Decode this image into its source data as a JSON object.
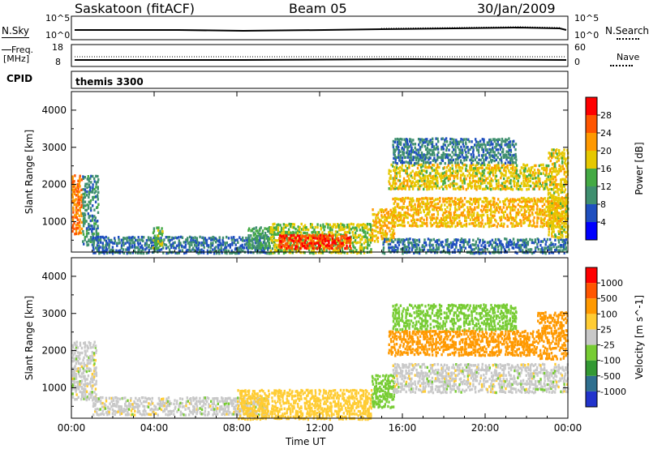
{
  "header": {
    "station": "Saskatoon (fitACF)",
    "beam": "Beam 05",
    "date": "30/Jan/2009"
  },
  "strip1": {
    "left_label": "N.Sky",
    "right_label": "N.Search",
    "left_ticks": [
      "10^5",
      "10^0"
    ],
    "right_ticks": [
      "10^5",
      "10^0"
    ]
  },
  "strip2": {
    "left_label_1": "Freq.",
    "left_label_2": "[MHz]",
    "right_label": "Nave",
    "left_ticks": [
      "18",
      "8"
    ],
    "right_ticks": [
      "60",
      "0"
    ]
  },
  "cpid": {
    "label": "CPID",
    "value": "themis 3300"
  },
  "chart_data": [
    {
      "type": "heatmap",
      "quantity": "Power",
      "ylabel": "Slant Range [km]",
      "xlabel": "Time UT",
      "x_ticks": [
        "00:00",
        "04:00",
        "08:00",
        "12:00",
        "16:00",
        "20:00",
        "00:00"
      ],
      "y_ticks": [
        1000,
        2000,
        3000,
        4000
      ],
      "xlim_hours": [
        0,
        24
      ],
      "ylim": [
        180,
        4500
      ],
      "colorbar": {
        "label": "Power [dB]",
        "ticks": [
          4,
          8,
          12,
          16,
          20,
          24,
          28
        ],
        "colors": [
          "#0000ff",
          "#1f4fbf",
          "#3f8f6f",
          "#44aa44",
          "#e6c800",
          "#ff9900",
          "#ff5500",
          "#ff0000"
        ]
      },
      "regions": [
        {
          "t0": 0.0,
          "t1": 0.5,
          "r0": 700,
          "r1": 2300,
          "level": 24
        },
        {
          "t0": 0.5,
          "t1": 1.3,
          "r0": 400,
          "r1": 2300,
          "level": 10
        },
        {
          "t0": 1.0,
          "t1": 9.5,
          "r0": 180,
          "r1": 650,
          "level": 8
        },
        {
          "t0": 3.9,
          "t1": 4.4,
          "r0": 300,
          "r1": 900,
          "level": 14
        },
        {
          "t0": 8.5,
          "t1": 9.8,
          "r0": 300,
          "r1": 900,
          "level": 12
        },
        {
          "t0": 9.5,
          "t1": 14.5,
          "r0": 180,
          "r1": 1000,
          "level": 16
        },
        {
          "t0": 10.0,
          "t1": 13.5,
          "r0": 300,
          "r1": 700,
          "level": 28
        },
        {
          "t0": 14.5,
          "t1": 15.6,
          "r0": 500,
          "r1": 1400,
          "level": 20
        },
        {
          "t0": 15.0,
          "t1": 24.0,
          "r0": 180,
          "r1": 600,
          "level": 8
        },
        {
          "t0": 15.5,
          "t1": 24.0,
          "r0": 900,
          "r1": 1700,
          "level": 20
        },
        {
          "t0": 15.3,
          "t1": 23.0,
          "r0": 1900,
          "r1": 2600,
          "level": 18
        },
        {
          "t0": 15.5,
          "t1": 21.5,
          "r0": 2600,
          "r1": 3300,
          "level": 9
        },
        {
          "t0": 23.0,
          "t1": 24.0,
          "r0": 600,
          "r1": 3000,
          "level": 18
        }
      ]
    },
    {
      "type": "heatmap",
      "quantity": "Velocity",
      "ylabel": "Slant Range [km]",
      "xlabel": "Time UT",
      "x_ticks": [
        "00:00",
        "04:00",
        "08:00",
        "12:00",
        "16:00",
        "20:00",
        "00:00"
      ],
      "y_ticks": [
        1000,
        2000,
        3000,
        4000
      ],
      "xlim_hours": [
        0,
        24
      ],
      "ylim": [
        180,
        4500
      ],
      "colorbar": {
        "label": "Velocity [m s^-1]",
        "ticks": [
          "1000",
          "500",
          "100",
          "25",
          "-25",
          "-100",
          "-500",
          "-1000"
        ],
        "colors": [
          "#2233cc",
          "#2f6f8f",
          "#339933",
          "#77cc33",
          "#c8c8c8",
          "#ffcc33",
          "#ff9900",
          "#ff5500",
          "#ff0000"
        ]
      },
      "regions": [
        {
          "t0": 0.0,
          "t1": 1.2,
          "r0": 700,
          "r1": 2300,
          "level": 0
        },
        {
          "t0": 1.0,
          "t1": 9.5,
          "r0": 300,
          "r1": 800,
          "level": 0
        },
        {
          "t0": 8.0,
          "t1": 14.5,
          "r0": 180,
          "r1": 1000,
          "level": -60
        },
        {
          "t0": 14.5,
          "t1": 15.6,
          "r0": 500,
          "r1": 1400,
          "level": 60
        },
        {
          "t0": 15.5,
          "t1": 24.0,
          "r0": 900,
          "r1": 1700,
          "level": 0
        },
        {
          "t0": 15.3,
          "t1": 22.5,
          "r0": 1900,
          "r1": 2600,
          "level": -300
        },
        {
          "t0": 15.5,
          "t1": 21.5,
          "r0": 2600,
          "r1": 3300,
          "level": 60
        },
        {
          "t0": 22.5,
          "t1": 24.0,
          "r0": 1800,
          "r1": 3100,
          "level": -300
        }
      ]
    }
  ]
}
